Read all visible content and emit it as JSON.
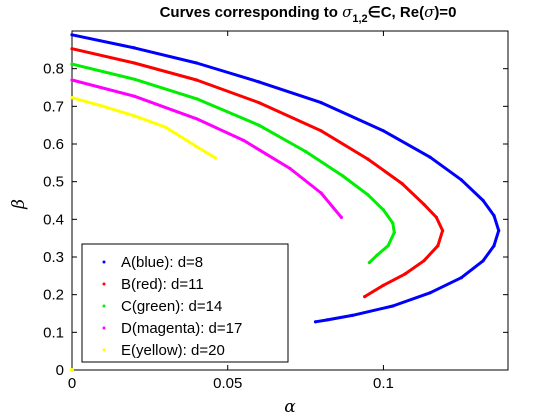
{
  "chart_data": {
    "type": "scatter",
    "title_parts": {
      "prefix": "Curves corresponding to ",
      "sigma": "σ",
      "sub": "1,2",
      "middle": "∈C, Re(",
      "sigma2": "σ",
      "suffix": ")=0"
    },
    "xlabel": "α",
    "ylabel": "β",
    "xlim": [
      0,
      0.14
    ],
    "ylim": [
      0,
      0.9
    ],
    "xticks": [
      "0",
      "0.05",
      "0.1"
    ],
    "yticks": [
      "0",
      "0.1",
      "0.2",
      "0.3",
      "0.4",
      "0.5",
      "0.6",
      "0.7",
      "0.8"
    ],
    "grid": false,
    "legend_position": "bottom-left",
    "series": [
      {
        "name": "A(blue): d=8",
        "color": "#0000ff",
        "points": [
          [
            0,
            0.89
          ],
          [
            0.02,
            0.855
          ],
          [
            0.04,
            0.815
          ],
          [
            0.06,
            0.765
          ],
          [
            0.08,
            0.71
          ],
          [
            0.1,
            0.635
          ],
          [
            0.115,
            0.565
          ],
          [
            0.125,
            0.505
          ],
          [
            0.132,
            0.45
          ],
          [
            0.1355,
            0.41
          ],
          [
            0.137,
            0.37
          ],
          [
            0.1355,
            0.33
          ],
          [
            0.132,
            0.29
          ],
          [
            0.125,
            0.245
          ],
          [
            0.115,
            0.205
          ],
          [
            0.103,
            0.17
          ],
          [
            0.09,
            0.145
          ],
          [
            0.082,
            0.133
          ],
          [
            0.0782,
            0.128
          ]
        ]
      },
      {
        "name": "B(red): d=11",
        "color": "#ff0000",
        "points": [
          [
            0,
            0.853
          ],
          [
            0.02,
            0.815
          ],
          [
            0.04,
            0.77
          ],
          [
            0.06,
            0.71
          ],
          [
            0.08,
            0.635
          ],
          [
            0.095,
            0.56
          ],
          [
            0.106,
            0.495
          ],
          [
            0.113,
            0.44
          ],
          [
            0.117,
            0.405
          ],
          [
            0.119,
            0.37
          ],
          [
            0.1175,
            0.33
          ],
          [
            0.113,
            0.29
          ],
          [
            0.107,
            0.255
          ],
          [
            0.1,
            0.225
          ],
          [
            0.094,
            0.195
          ]
        ]
      },
      {
        "name": "C(green): d=14",
        "color": "#00ee00",
        "points": [
          [
            0,
            0.812
          ],
          [
            0.02,
            0.772
          ],
          [
            0.04,
            0.72
          ],
          [
            0.06,
            0.65
          ],
          [
            0.075,
            0.58
          ],
          [
            0.087,
            0.515
          ],
          [
            0.095,
            0.465
          ],
          [
            0.1,
            0.425
          ],
          [
            0.103,
            0.39
          ],
          [
            0.1035,
            0.365
          ],
          [
            0.1015,
            0.33
          ],
          [
            0.098,
            0.305
          ],
          [
            0.0955,
            0.285
          ]
        ]
      },
      {
        "name": "D(magenta): d=17",
        "color": "#ff00ff",
        "points": [
          [
            0,
            0.77
          ],
          [
            0.02,
            0.727
          ],
          [
            0.04,
            0.667
          ],
          [
            0.055,
            0.61
          ],
          [
            0.07,
            0.535
          ],
          [
            0.08,
            0.47
          ],
          [
            0.0865,
            0.405
          ]
        ]
      },
      {
        "name": "E(yellow): d=20",
        "color": "#ffff00",
        "points": [
          [
            0,
            0.723
          ],
          [
            0.01,
            0.7
          ],
          [
            0.02,
            0.675
          ],
          [
            0.03,
            0.645
          ],
          [
            0.04,
            0.593
          ],
          [
            0.046,
            0.563
          ]
        ]
      }
    ],
    "extra_points": [
      {
        "x": 0,
        "y": 0,
        "color": "#ffff00"
      }
    ]
  }
}
